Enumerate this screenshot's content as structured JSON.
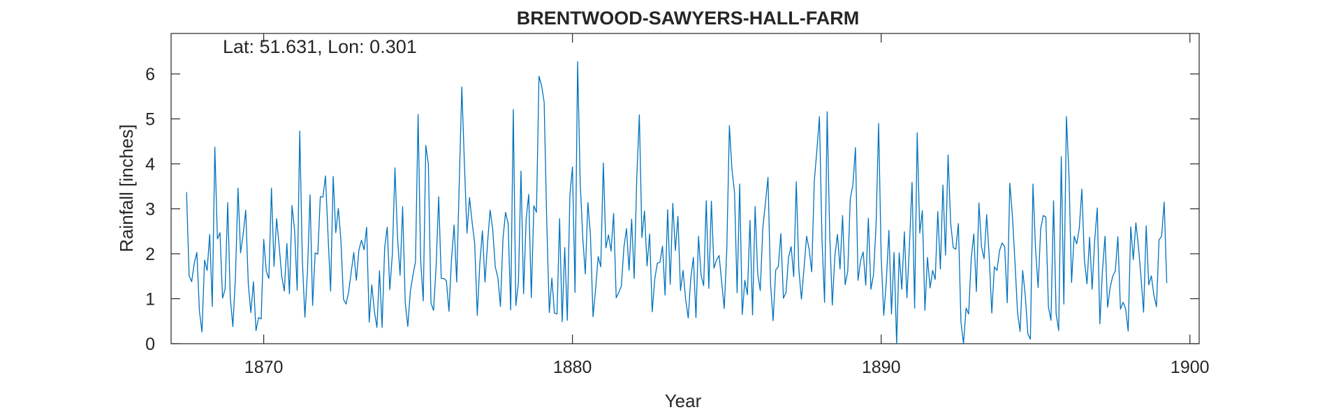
{
  "chart_data": {
    "type": "line",
    "title": "BRENTWOOD-SAWYERS-HALL-FARM",
    "annotation": "Lat: 51.631, Lon: 0.301",
    "xlabel": "Year",
    "ylabel": "Rainfall [inches]",
    "xlim": [
      1867,
      1900.3
    ],
    "ylim": [
      0,
      6.9
    ],
    "xticks": [
      1870,
      1880,
      1890,
      1900
    ],
    "xtick_labels": [
      "1870",
      "1880",
      "1890",
      "1900"
    ],
    "yticks": [
      0,
      1,
      2,
      3,
      4,
      5,
      6
    ],
    "ytick_labels": [
      "0",
      "1",
      "2",
      "3",
      "4",
      "5",
      "6"
    ],
    "grid": false,
    "line_color": "#0072BD",
    "series": [
      {
        "x_start": 1867.5,
        "x_step": 0.0833333,
        "values": [
          3.37,
          1.51,
          1.38,
          1.79,
          2.03,
          0.73,
          0.26,
          1.86,
          1.63,
          2.43,
          0.83,
          4.37,
          2.33,
          2.47,
          1.01,
          1.22,
          3.14,
          1.02,
          0.38,
          1.46,
          3.46,
          2.02,
          2.43,
          2.97,
          1.33,
          0.69,
          1.38,
          0.29,
          0.58,
          0.55,
          2.32,
          1.61,
          1.45,
          3.46,
          1.72,
          2.78,
          2.17,
          1.5,
          1.17,
          2.23,
          1.11,
          3.07,
          2.52,
          1.19,
          4.73,
          1.88,
          0.59,
          1.59,
          3.31,
          0.85,
          2.02,
          1.99,
          3.27,
          3.26,
          3.73,
          2.41,
          1.17,
          3.72,
          2.47,
          3.01,
          2.3,
          0.99,
          0.88,
          1.15,
          1.59,
          2.03,
          1.41,
          2.09,
          2.3,
          2.09,
          2.59,
          0.48,
          1.31,
          0.73,
          0.36,
          1.62,
          0.36,
          2.13,
          2.59,
          1.2,
          1.99,
          3.91,
          2.37,
          1.52,
          3.05,
          0.91,
          0.38,
          1.17,
          1.52,
          1.83,
          5.1,
          1.86,
          0.95,
          4.41,
          3.99,
          0.91,
          0.74,
          1.71,
          3.27,
          1.45,
          1.45,
          1.4,
          0.72,
          1.89,
          2.64,
          1.37,
          3.58,
          5.71,
          4.0,
          2.46,
          3.25,
          2.7,
          2.23,
          0.63,
          1.79,
          2.51,
          1.37,
          2.24,
          2.97,
          2.54,
          1.71,
          1.47,
          0.83,
          2.34,
          2.92,
          2.67,
          0.75,
          5.21,
          0.85,
          1.36,
          3.84,
          1.11,
          2.77,
          3.32,
          1.02,
          3.07,
          2.92,
          5.95,
          5.74,
          5.37,
          2.72,
          0.69,
          1.46,
          0.68,
          0.66,
          2.78,
          0.49,
          2.14,
          0.52,
          3.3,
          3.93,
          1.14,
          6.27,
          3.6,
          2.36,
          1.55,
          3.14,
          2.41,
          0.6,
          1.22,
          1.94,
          1.71,
          4.02,
          2.13,
          2.42,
          2.06,
          2.9,
          1.02,
          1.14,
          1.28,
          2.14,
          2.56,
          1.63,
          2.77,
          1.45,
          3.7,
          5.09,
          2.36,
          2.95,
          1.73,
          2.44,
          0.71,
          1.44,
          1.79,
          1.81,
          2.17,
          1.08,
          2.98,
          1.32,
          3.12,
          2.07,
          2.83,
          1.18,
          1.63,
          0.98,
          0.57,
          1.46,
          1.92,
          0.58,
          2.39,
          1.52,
          1.29,
          3.18,
          1.23,
          3.17,
          1.68,
          1.86,
          1.96,
          1.37,
          0.78,
          2.11,
          4.85,
          3.87,
          3.36,
          1.13,
          3.55,
          0.65,
          1.41,
          1.09,
          2.74,
          0.64,
          3.05,
          1.56,
          1.18,
          2.58,
          3.13,
          3.7,
          1.33,
          0.51,
          1.64,
          1.71,
          2.45,
          1.01,
          1.14,
          1.92,
          2.16,
          1.49,
          3.6,
          1.65,
          0.99,
          1.67,
          2.39,
          2.1,
          1.6,
          3.62,
          4.3,
          5.05,
          2.31,
          0.92,
          5.16,
          2.43,
          0.86,
          1.95,
          2.43,
          1.66,
          2.85,
          1.31,
          1.61,
          3.23,
          3.53,
          4.36,
          1.41,
          1.85,
          2.04,
          1.3,
          2.79,
          1.21,
          1.53,
          2.62,
          4.9,
          1.93,
          0.63,
          1.39,
          2.52,
          0.66,
          2.03,
          0.0,
          2.02,
          1.21,
          2.49,
          1.02,
          2.2,
          3.59,
          0.79,
          4.69,
          2.46,
          2.96,
          0.74,
          1.92,
          1.24,
          1.63,
          1.43,
          2.94,
          1.66,
          3.53,
          1.97,
          4.2,
          2.69,
          2.14,
          2.1,
          2.67,
          0.49,
          0.0,
          0.79,
          0.66,
          1.9,
          2.44,
          1.16,
          3.13,
          2.16,
          1.89,
          2.87,
          1.92,
          0.68,
          1.71,
          1.63,
          2.07,
          2.24,
          2.16,
          0.91,
          3.57,
          2.85,
          1.82,
          0.69,
          0.27,
          1.63,
          1.08,
          0.22,
          0.1,
          3.55,
          2.1,
          1.25,
          2.56,
          2.85,
          2.82,
          0.82,
          0.52,
          3.18,
          0.67,
          0.29,
          4.16,
          0.88,
          5.05,
          3.74,
          1.36,
          2.39,
          2.22,
          2.57,
          3.44,
          1.85,
          1.33,
          2.37,
          1.21,
          2.31,
          3.02,
          0.44,
          1.62,
          2.39,
          0.81,
          1.25,
          1.5,
          1.62,
          2.38,
          0.77,
          0.92,
          0.78,
          0.28,
          2.6,
          1.87,
          2.69,
          2.16,
          1.47,
          0.7,
          2.62,
          1.31,
          1.51,
          1.08,
          0.82,
          2.31,
          2.39,
          3.15,
          1.35
        ]
      }
    ]
  }
}
